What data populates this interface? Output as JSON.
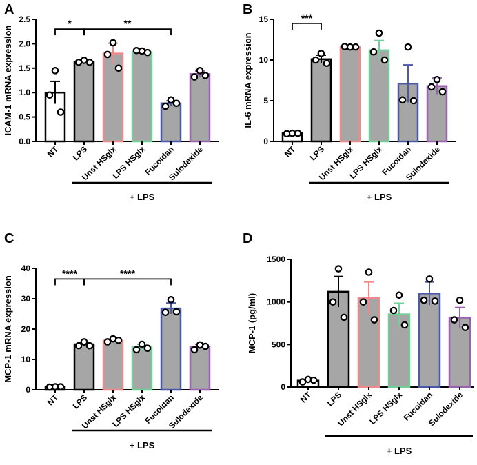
{
  "figure": {
    "panels": [
      "A",
      "B",
      "C",
      "D"
    ]
  },
  "colors": {
    "NT": "#000000",
    "LPS": "#000000",
    "Unst HSglx": "#f08a8a",
    "LPS HSglx": "#6fd19a",
    "Fucoidan": "#4a5aa8",
    "Sulodexide": "#9a62b0",
    "bar_fill_white": "#ffffff",
    "bar_fill_gray": "#a6a6a6"
  },
  "chart_data": [
    {
      "panel": "A",
      "type": "bar",
      "ylabel": "ICAM-1 mRNA expression",
      "ylim": [
        0,
        2.5
      ],
      "yticks": [
        0.0,
        0.5,
        1.0,
        1.5,
        2.0,
        2.5
      ],
      "ytick_labels": [
        "0.0",
        "0.5",
        "1.0",
        "1.5",
        "2.0",
        "2.5"
      ],
      "categories": [
        "NT",
        "LPS",
        "Unst HSglx",
        "LPS HSglx",
        "Fucoidan",
        "Sulodexide"
      ],
      "means": [
        1.0,
        1.63,
        1.8,
        1.83,
        0.78,
        1.38
      ],
      "sem": [
        0.23,
        0.04,
        0.21,
        0.03,
        0.05,
        0.06
      ],
      "points": [
        [
          1.45,
          0.95,
          0.6
        ],
        [
          1.66,
          1.62,
          1.62
        ],
        [
          2.02,
          1.78,
          1.5
        ],
        [
          1.85,
          1.86,
          1.82
        ],
        [
          0.85,
          0.72,
          0.78
        ],
        [
          1.45,
          1.32,
          1.35
        ]
      ],
      "group_label": "+ LPS",
      "significance": [
        {
          "from": 0,
          "to": 1,
          "label": "*",
          "y": 2.3
        },
        {
          "from": 1,
          "to": 4,
          "label": "**",
          "y": 2.3
        }
      ]
    },
    {
      "panel": "B",
      "type": "bar",
      "ylabel": "IL-6 mRNA expression",
      "ylim": [
        0,
        15
      ],
      "yticks": [
        0,
        5,
        10,
        15
      ],
      "ytick_labels": [
        "0",
        "5",
        "10",
        "15"
      ],
      "categories": [
        "NT",
        "LPS",
        "Unst HSglx",
        "LPS HSglx",
        "Fucoidan",
        "Sulodexide"
      ],
      "means": [
        1.0,
        10.1,
        11.6,
        11.2,
        7.1,
        6.8
      ],
      "sem": [
        0.05,
        0.5,
        0.1,
        1.2,
        2.3,
        1.0
      ],
      "points": [
        [
          1.0,
          0.95,
          1.0
        ],
        [
          10.8,
          10.0,
          9.6
        ],
        [
          11.6,
          11.65,
          11.6
        ],
        [
          13.3,
          11.0,
          10.0
        ],
        [
          11.6,
          5.1,
          5.0
        ],
        [
          7.6,
          6.7,
          6.1
        ]
      ],
      "group_label": "+ LPS",
      "significance": [
        {
          "from": 0,
          "to": 1,
          "label": "***",
          "y": 14.5
        }
      ]
    },
    {
      "panel": "C",
      "type": "bar",
      "ylabel": "MCP-1 mRNA expression",
      "ylim": [
        0,
        40
      ],
      "yticks": [
        0,
        10,
        20,
        30,
        40
      ],
      "ytick_labels": [
        "0",
        "10",
        "20",
        "30",
        "40"
      ],
      "categories": [
        "NT",
        "LPS",
        "Unst HSglx",
        "LPS HSglx",
        "Fucoidan",
        "Sulodexide"
      ],
      "means": [
        1.0,
        15.0,
        16.2,
        14.0,
        26.8,
        14.2
      ],
      "sem": [
        0.1,
        0.6,
        0.5,
        1.0,
        1.8,
        0.8
      ],
      "points": [
        [
          1.0,
          0.9,
          1.0
        ],
        [
          15.8,
          14.5,
          14.5
        ],
        [
          16.8,
          15.8,
          16.3
        ],
        [
          15.0,
          13.2,
          13.7
        ],
        [
          29.7,
          25.5,
          25.7
        ],
        [
          14.8,
          13.2,
          14.3
        ]
      ],
      "group_label": "+ LPS",
      "significance": [
        {
          "from": 0,
          "to": 1,
          "label": "****",
          "y": 36.5
        },
        {
          "from": 1,
          "to": 4,
          "label": "****",
          "y": 36.5
        }
      ]
    },
    {
      "panel": "D",
      "type": "bar",
      "ylabel": "MCP-1 (pg/ml)",
      "ylim": [
        0,
        1500
      ],
      "yticks": [
        0,
        500,
        1000,
        1500
      ],
      "ytick_labels": [
        "0",
        "500",
        "1000",
        "1500"
      ],
      "categories": [
        "NT",
        "LPS",
        "Unst HSglx",
        "LPS HSglx",
        "Fucoidan",
        "Sulodexide"
      ],
      "means": [
        75,
        1120,
        1045,
        855,
        1100,
        815
      ],
      "sem": [
        15,
        180,
        190,
        130,
        135,
        120
      ],
      "points": [
        [
          90,
          60,
          80
        ],
        [
          1390,
          1000,
          820
        ],
        [
          1350,
          1000,
          790
        ],
        [
          1080,
          900,
          730
        ],
        [
          1270,
          1020,
          1010
        ],
        [
          1020,
          790,
          700
        ]
      ],
      "group_label": "+ LPS",
      "significance": []
    }
  ]
}
